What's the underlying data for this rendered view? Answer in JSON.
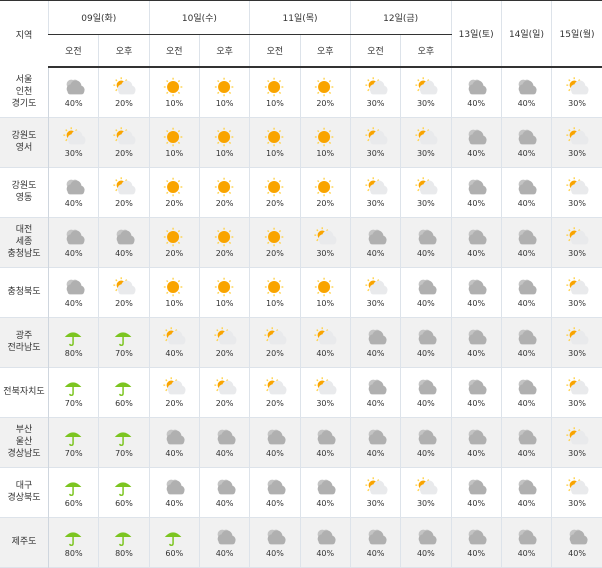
{
  "header": {
    "region_label": "지역",
    "days": [
      {
        "label": "09일(화)",
        "split": true
      },
      {
        "label": "10일(수)",
        "split": true
      },
      {
        "label": "11일(목)",
        "split": true
      },
      {
        "label": "12일(금)",
        "split": true
      },
      {
        "label": "13일(토)",
        "split": false
      },
      {
        "label": "14일(일)",
        "split": false
      },
      {
        "label": "15일(월)",
        "split": false
      }
    ],
    "am_label": "오전",
    "pm_label": "오후"
  },
  "icon_legend": {
    "S": "sunny-icon",
    "P": "partly-cloudy-icon",
    "C": "cloudy-icon",
    "R": "rain-umbrella-icon"
  },
  "colors": {
    "sun": "#f9a400",
    "rain": "#7cc520",
    "cloud": "#b0b0b0"
  },
  "rows": [
    {
      "region": [
        "서울",
        "인천",
        "경기도"
      ],
      "cells": [
        [
          "C",
          "40%"
        ],
        [
          "P",
          "20%"
        ],
        [
          "S",
          "10%"
        ],
        [
          "S",
          "10%"
        ],
        [
          "S",
          "10%"
        ],
        [
          "S",
          "20%"
        ],
        [
          "P",
          "30%"
        ],
        [
          "P",
          "30%"
        ],
        [
          "C",
          "40%"
        ],
        [
          "C",
          "40%"
        ],
        [
          "P",
          "30%"
        ]
      ]
    },
    {
      "region": [
        "강원도",
        "영서"
      ],
      "cells": [
        [
          "P",
          "30%"
        ],
        [
          "P",
          "20%"
        ],
        [
          "S",
          "10%"
        ],
        [
          "S",
          "10%"
        ],
        [
          "S",
          "10%"
        ],
        [
          "S",
          "10%"
        ],
        [
          "P",
          "30%"
        ],
        [
          "P",
          "30%"
        ],
        [
          "C",
          "40%"
        ],
        [
          "C",
          "40%"
        ],
        [
          "P",
          "30%"
        ]
      ]
    },
    {
      "region": [
        "강원도",
        "영동"
      ],
      "cells": [
        [
          "C",
          "40%"
        ],
        [
          "P",
          "20%"
        ],
        [
          "S",
          "20%"
        ],
        [
          "S",
          "20%"
        ],
        [
          "S",
          "20%"
        ],
        [
          "S",
          "20%"
        ],
        [
          "P",
          "30%"
        ],
        [
          "P",
          "30%"
        ],
        [
          "C",
          "40%"
        ],
        [
          "C",
          "40%"
        ],
        [
          "P",
          "30%"
        ]
      ]
    },
    {
      "region": [
        "대전",
        "세종",
        "충청남도"
      ],
      "cells": [
        [
          "C",
          "40%"
        ],
        [
          "C",
          "40%"
        ],
        [
          "S",
          "20%"
        ],
        [
          "S",
          "20%"
        ],
        [
          "S",
          "20%"
        ],
        [
          "P",
          "30%"
        ],
        [
          "C",
          "40%"
        ],
        [
          "C",
          "40%"
        ],
        [
          "C",
          "40%"
        ],
        [
          "C",
          "40%"
        ],
        [
          "P",
          "30%"
        ]
      ]
    },
    {
      "region": [
        "충청북도"
      ],
      "cells": [
        [
          "C",
          "40%"
        ],
        [
          "P",
          "20%"
        ],
        [
          "S",
          "10%"
        ],
        [
          "S",
          "10%"
        ],
        [
          "S",
          "10%"
        ],
        [
          "S",
          "10%"
        ],
        [
          "P",
          "30%"
        ],
        [
          "C",
          "40%"
        ],
        [
          "C",
          "40%"
        ],
        [
          "C",
          "40%"
        ],
        [
          "P",
          "30%"
        ]
      ]
    },
    {
      "region": [
        "광주",
        "전라남도"
      ],
      "cells": [
        [
          "R",
          "80%"
        ],
        [
          "R",
          "70%"
        ],
        [
          "P",
          "40%"
        ],
        [
          "P",
          "20%"
        ],
        [
          "P",
          "20%"
        ],
        [
          "P",
          "40%"
        ],
        [
          "C",
          "40%"
        ],
        [
          "C",
          "40%"
        ],
        [
          "C",
          "40%"
        ],
        [
          "C",
          "40%"
        ],
        [
          "P",
          "30%"
        ]
      ]
    },
    {
      "region": [
        "전북자치도"
      ],
      "cells": [
        [
          "R",
          "70%"
        ],
        [
          "R",
          "60%"
        ],
        [
          "P",
          "20%"
        ],
        [
          "P",
          "20%"
        ],
        [
          "P",
          "20%"
        ],
        [
          "P",
          "30%"
        ],
        [
          "C",
          "40%"
        ],
        [
          "C",
          "40%"
        ],
        [
          "C",
          "40%"
        ],
        [
          "C",
          "40%"
        ],
        [
          "P",
          "30%"
        ]
      ]
    },
    {
      "region": [
        "부산",
        "울산",
        "경상남도"
      ],
      "cells": [
        [
          "R",
          "70%"
        ],
        [
          "R",
          "70%"
        ],
        [
          "C",
          "40%"
        ],
        [
          "C",
          "40%"
        ],
        [
          "C",
          "40%"
        ],
        [
          "C",
          "40%"
        ],
        [
          "C",
          "40%"
        ],
        [
          "C",
          "40%"
        ],
        [
          "C",
          "40%"
        ],
        [
          "C",
          "40%"
        ],
        [
          "P",
          "30%"
        ]
      ]
    },
    {
      "region": [
        "대구",
        "경상북도"
      ],
      "cells": [
        [
          "R",
          "60%"
        ],
        [
          "R",
          "60%"
        ],
        [
          "C",
          "40%"
        ],
        [
          "C",
          "40%"
        ],
        [
          "C",
          "40%"
        ],
        [
          "C",
          "40%"
        ],
        [
          "P",
          "30%"
        ],
        [
          "P",
          "30%"
        ],
        [
          "C",
          "40%"
        ],
        [
          "C",
          "40%"
        ],
        [
          "P",
          "30%"
        ]
      ]
    },
    {
      "region": [
        "제주도"
      ],
      "cells": [
        [
          "R",
          "80%"
        ],
        [
          "R",
          "80%"
        ],
        [
          "R",
          "60%"
        ],
        [
          "C",
          "40%"
        ],
        [
          "C",
          "40%"
        ],
        [
          "C",
          "40%"
        ],
        [
          "C",
          "40%"
        ],
        [
          "C",
          "40%"
        ],
        [
          "C",
          "40%"
        ],
        [
          "C",
          "40%"
        ],
        [
          "C",
          "40%"
        ]
      ]
    }
  ]
}
